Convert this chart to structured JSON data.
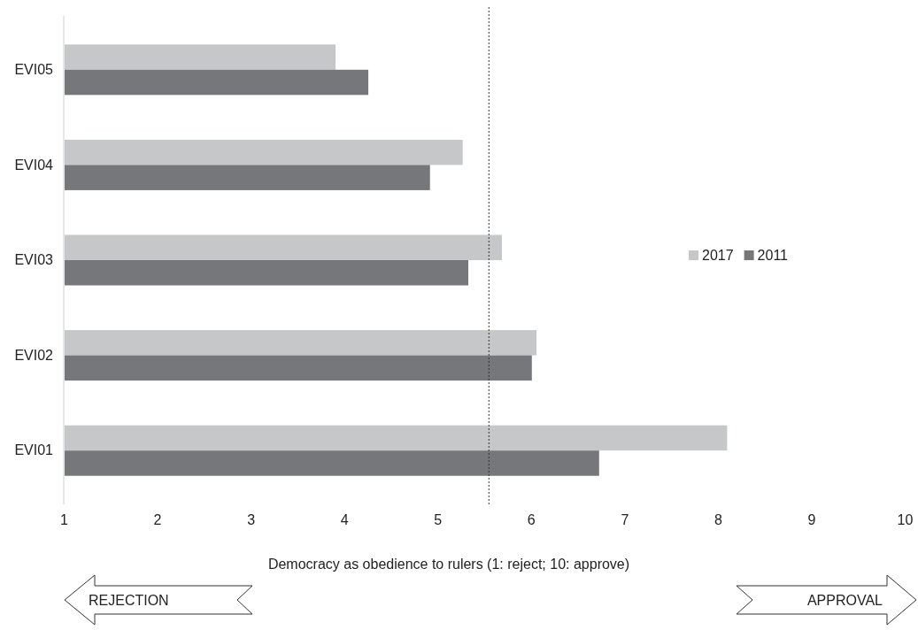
{
  "chart_data": {
    "type": "bar",
    "orientation": "horizontal",
    "xlabel": "Democracy as obedience to rulers (1: reject; 10: approve)",
    "categories": [
      "EVI05",
      "EVI04",
      "EVI03",
      "EVI02",
      "EVI01"
    ],
    "series": [
      {
        "name": "2017",
        "color": "#c6c7c9",
        "values": [
          3.9,
          5.26,
          5.68,
          6.05,
          8.09
        ]
      },
      {
        "name": "2011",
        "color": "#76777b",
        "values": [
          4.25,
          4.91,
          5.32,
          6.0,
          6.72
        ]
      }
    ],
    "xlim": [
      1,
      10
    ],
    "xticks": [
      1,
      2,
      3,
      4,
      5,
      6,
      7,
      8,
      9,
      10
    ],
    "ref_lines": [
      {
        "axis": "x",
        "value": 5.55,
        "line_style": "dotted",
        "color": "#333333"
      }
    ],
    "legend": "right",
    "annotations": [
      "REJECTION",
      "APPROVAL"
    ]
  }
}
